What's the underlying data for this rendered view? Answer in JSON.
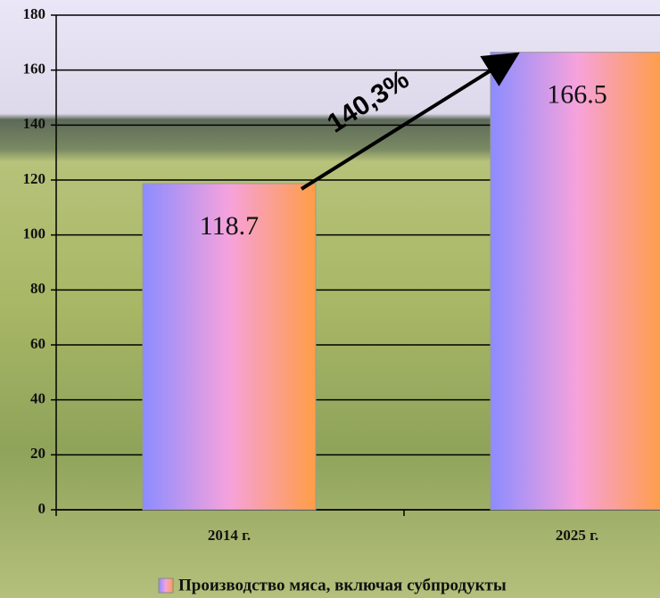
{
  "chart_data": {
    "type": "bar",
    "categories": [
      "2014 г.",
      "2025 г."
    ],
    "series": [
      {
        "name": "Производство мяса, включая субпродукты",
        "colors": [
          "#8c8cff",
          "#f6a2dc",
          "#ff9d45"
        ],
        "values": [
          118.7,
          166.5
        ]
      }
    ],
    "ylim": [
      0,
      180
    ],
    "yticks": [
      0,
      20,
      40,
      60,
      80,
      100,
      120,
      140,
      160,
      180
    ],
    "grid": true,
    "annotation": "140,3%"
  }
}
